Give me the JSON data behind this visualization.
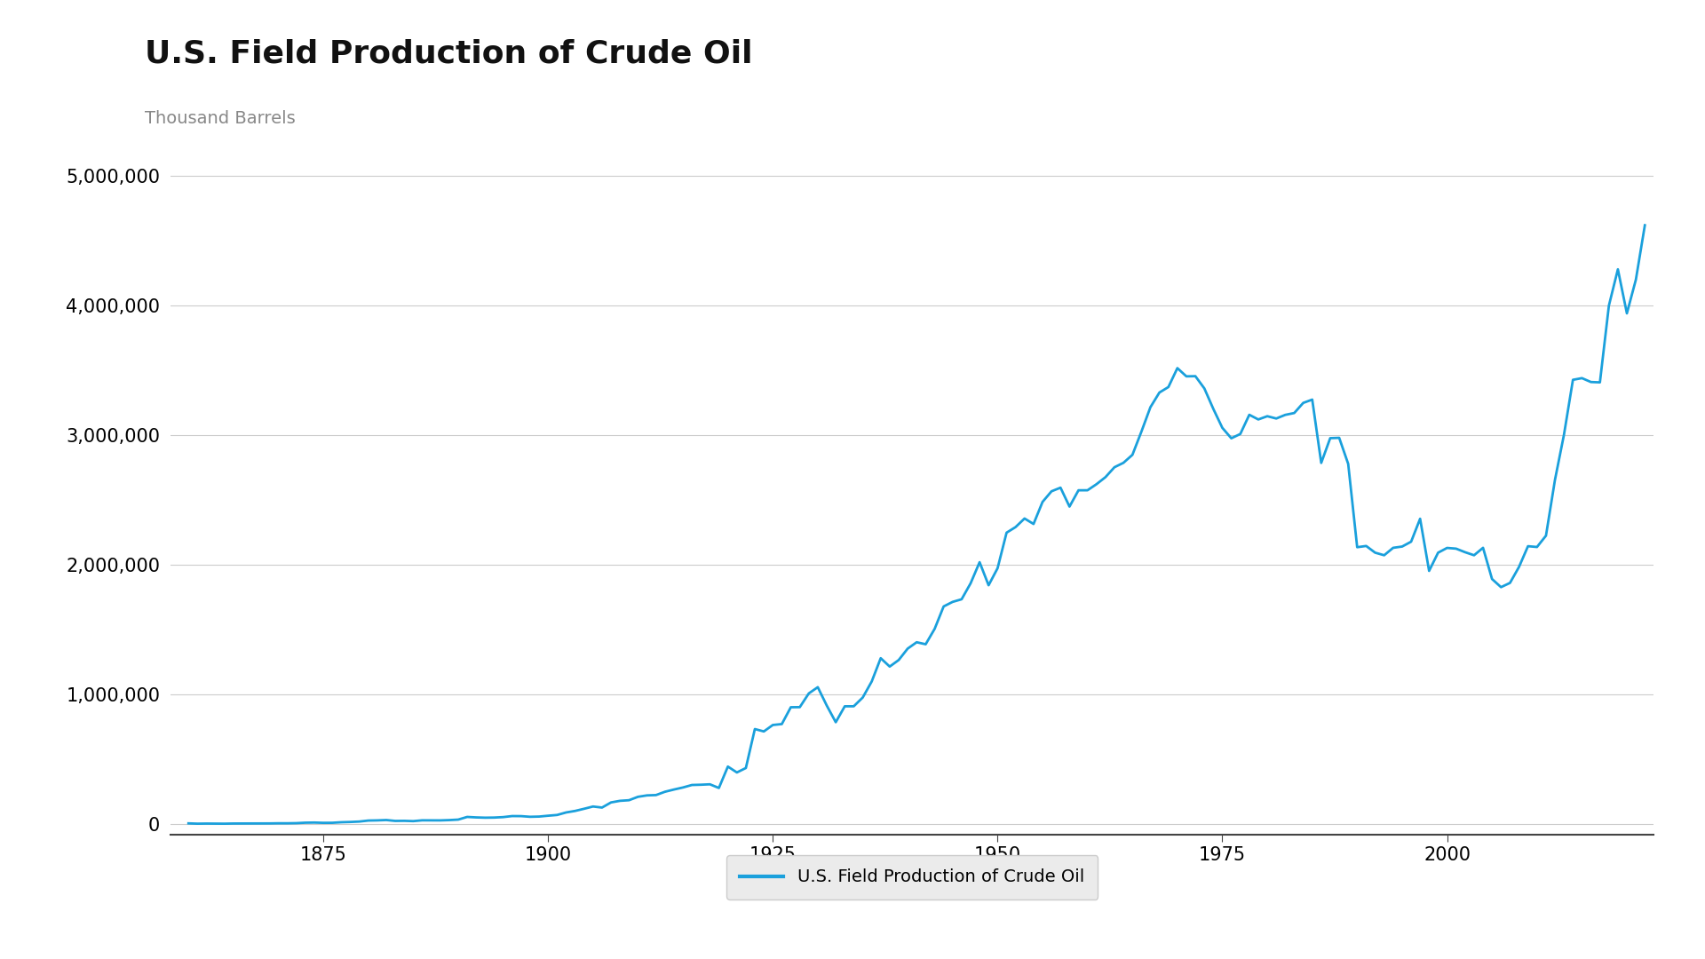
{
  "title": "U.S. Field Production of Crude Oil",
  "ylabel": "Thousand Barrels",
  "legend_label": "U.S. Field Production of Crude Oil",
  "line_color": "#1aA0DC",
  "background_color": "#ffffff",
  "ylim": [
    -80000,
    5100000
  ],
  "yticks": [
    0,
    1000000,
    2000000,
    3000000,
    4000000,
    5000000
  ],
  "title_fontsize": 26,
  "ylabel_fontsize": 14,
  "xticks": [
    1875,
    1900,
    1925,
    1950,
    1975,
    2000
  ],
  "years": [
    1860,
    1861,
    1862,
    1863,
    1864,
    1865,
    1866,
    1867,
    1868,
    1869,
    1870,
    1871,
    1872,
    1873,
    1874,
    1875,
    1876,
    1877,
    1878,
    1879,
    1880,
    1881,
    1882,
    1883,
    1884,
    1885,
    1886,
    1887,
    1888,
    1889,
    1890,
    1891,
    1892,
    1893,
    1894,
    1895,
    1896,
    1897,
    1898,
    1899,
    1900,
    1901,
    1902,
    1903,
    1904,
    1905,
    1906,
    1907,
    1908,
    1909,
    1910,
    1911,
    1912,
    1913,
    1914,
    1915,
    1916,
    1917,
    1918,
    1919,
    1920,
    1921,
    1922,
    1923,
    1924,
    1925,
    1926,
    1927,
    1928,
    1929,
    1930,
    1931,
    1932,
    1933,
    1934,
    1935,
    1936,
    1937,
    1938,
    1939,
    1940,
    1941,
    1942,
    1943,
    1944,
    1945,
    1946,
    1947,
    1948,
    1949,
    1950,
    1951,
    1952,
    1953,
    1954,
    1955,
    1956,
    1957,
    1958,
    1959,
    1960,
    1961,
    1962,
    1963,
    1964,
    1965,
    1966,
    1967,
    1968,
    1969,
    1970,
    1971,
    1972,
    1973,
    1974,
    1975,
    1976,
    1977,
    1978,
    1979,
    1980,
    1981,
    1982,
    1983,
    1984,
    1985,
    1986,
    1987,
    1988,
    1989,
    1990,
    1991,
    1992,
    1993,
    1994,
    1995,
    1996,
    1997,
    1998,
    1999,
    2000,
    2001,
    2002,
    2003,
    2004,
    2005,
    2006,
    2007,
    2008,
    2009,
    2010,
    2011,
    2012,
    2013,
    2014,
    2015,
    2016,
    2017,
    2018,
    2019,
    2020,
    2021,
    2022
  ],
  "values": [
    4660,
    2113,
    3057,
    2611,
    2116,
    3431,
    3597,
    3347,
    3646,
    4215,
    5260,
    5205,
    6293,
    9894,
    10927,
    8788,
    9133,
    13349,
    15397,
    18591,
    26286,
    27661,
    30350,
    23450,
    24218,
    21859,
    28065,
    28201,
    27578,
    29893,
    33680,
    54293,
    50515,
    48431,
    49344,
    52892,
    60960,
    60476,
    55364,
    57071,
    63620,
    69389,
    88767,
    100461,
    117081,
    134717,
    126494,
    166095,
    178527,
    183171,
    209557,
    220449,
    222935,
    248446,
    265763,
    281431,
    300767,
    302759,
    306063,
    277660,
    442929,
    397440,
    431729,
    732407,
    713940,
    763743,
    770874,
    900654,
    901474,
    1007323,
    1055479,
    913576,
    785159,
    907897,
    908075,
    975575,
    1099517,
    1279174,
    1214486,
    1264962,
    1353214,
    1402228,
    1386645,
    1505668,
    1678553,
    1713655,
    1733883,
    1856987,
    2020083,
    1841940,
    1973574,
    2247711,
    2290812,
    2357082,
    2314808,
    2484958,
    2567055,
    2595040,
    2448987,
    2574704,
    2574890,
    2621758,
    2676139,
    2752723,
    2786822,
    2848514,
    3027652,
    3215742,
    3329044,
    3371385,
    3517450,
    3453914,
    3455368,
    3360918,
    3202585,
    3056786,
    2975993,
    3009319,
    3157447,
    3121310,
    3146365,
    3128624,
    3156715,
    3170999,
    3249150,
    3274553,
    2786017,
    2977043,
    2979572,
    2778510,
    2135486,
    2145136,
    2093319,
    2073436,
    2130847,
    2140666,
    2178046,
    2355150,
    1952682,
    2093397,
    2130018,
    2124424,
    2097046,
    2073438,
    2131016,
    1890106,
    1827242,
    1860196,
    1983302,
    2143320,
    2137138,
    2224486,
    2654942,
    3002765,
    3427228,
    3440203,
    3410200,
    3407457,
    4000000,
    4280000,
    3940000,
    4200000,
    4620000
  ]
}
